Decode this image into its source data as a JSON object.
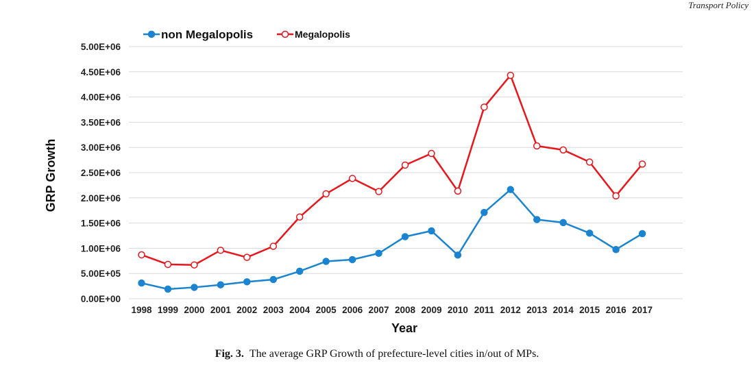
{
  "header": {
    "journal": "Transport Policy"
  },
  "caption": {
    "label": "Fig. 3.",
    "text": "The average GRP Growth of prefecture-level cities in/out of MPs."
  },
  "colors": {
    "non_megalopolis": "#1a84d0",
    "megalopolis": "#e8151b",
    "grid": "#d9d9d9"
  },
  "chart_data": {
    "type": "line",
    "xlabel": "Year",
    "ylabel": "GRP Growth",
    "categories": [
      "1998",
      "1999",
      "2000",
      "2001",
      "2002",
      "2003",
      "2004",
      "2005",
      "2006",
      "2007",
      "2008",
      "2009",
      "2010",
      "2011",
      "2012",
      "2013",
      "2014",
      "2015",
      "2016",
      "2017"
    ],
    "ylim": [
      0,
      5000000
    ],
    "yticks": [
      0,
      500000,
      1000000,
      1500000,
      2000000,
      2500000,
      3000000,
      3500000,
      4000000,
      4500000,
      5000000
    ],
    "ytick_labels": [
      "0.00E+00",
      "5.00E+05",
      "1.00E+06",
      "1.50E+06",
      "2.00E+06",
      "2.50E+06",
      "3.00E+06",
      "3.50E+06",
      "4.00E+06",
      "4.50E+06",
      "5.00E+06"
    ],
    "grid": "horizontal",
    "legend_position": "top-left",
    "series": [
      {
        "name": "non Megalopolis",
        "marker": "filled-circle",
        "values": [
          310000,
          190000,
          225000,
          275000,
          335000,
          380000,
          545000,
          740000,
          775000,
          900000,
          1230000,
          1345000,
          865000,
          1710000,
          2165000,
          1570000,
          1510000,
          1300000,
          975000,
          1290000
        ]
      },
      {
        "name": "Megalopolis",
        "marker": "hollow-circle",
        "values": [
          870000,
          680000,
          670000,
          960000,
          820000,
          1040000,
          1620000,
          2080000,
          2385000,
          2125000,
          2650000,
          2880000,
          2135000,
          3800000,
          4430000,
          3030000,
          2950000,
          2710000,
          2040000,
          2670000
        ]
      }
    ]
  }
}
